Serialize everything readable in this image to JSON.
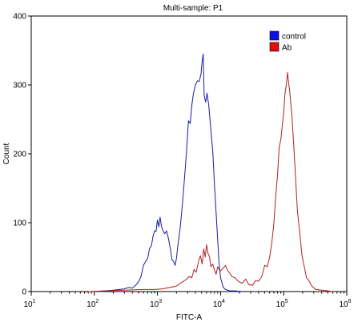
{
  "chart_data": {
    "type": "line",
    "title": "Multi-sample: P1",
    "xlabel": "FITC-A",
    "ylabel": "Count",
    "x_scale": "log",
    "xlim": [
      10,
      1000000
    ],
    "ylim": [
      0,
      400
    ],
    "x_ticks": [
      {
        "value": 10,
        "base": "10",
        "exp": "1"
      },
      {
        "value": 100,
        "base": "10",
        "exp": "2"
      },
      {
        "value": 1000,
        "base": "10",
        "exp": "3"
      },
      {
        "value": 10000,
        "base": "10",
        "exp": "4"
      },
      {
        "value": 100000,
        "base": "10",
        "exp": "5"
      },
      {
        "value": 1000000,
        "base": "10",
        "exp": "6"
      }
    ],
    "y_ticks": [
      0,
      100,
      200,
      300,
      400
    ],
    "legend": {
      "placement": "top-right"
    },
    "grid": false,
    "series": [
      {
        "name": "control",
        "color": "#1a1aa6",
        "legend_color": "#1010e0",
        "points": [
          [
            100,
            0
          ],
          [
            150,
            1
          ],
          [
            200,
            2
          ],
          [
            300,
            4
          ],
          [
            350,
            6
          ],
          [
            400,
            5
          ],
          [
            450,
            9
          ],
          [
            500,
            14
          ],
          [
            550,
            22
          ],
          [
            600,
            38
          ],
          [
            650,
            44
          ],
          [
            700,
            48
          ],
          [
            750,
            63
          ],
          [
            800,
            66
          ],
          [
            850,
            80
          ],
          [
            900,
            88
          ],
          [
            950,
            87
          ],
          [
            1000,
            104
          ],
          [
            1050,
            94
          ],
          [
            1100,
            108
          ],
          [
            1150,
            96
          ],
          [
            1200,
            90
          ],
          [
            1300,
            84
          ],
          [
            1400,
            88
          ],
          [
            1500,
            76
          ],
          [
            1600,
            62
          ],
          [
            1700,
            46
          ],
          [
            1800,
            44
          ],
          [
            1900,
            38
          ],
          [
            2000,
            48
          ],
          [
            2100,
            66
          ],
          [
            2300,
            94
          ],
          [
            2500,
            130
          ],
          [
            2700,
            168
          ],
          [
            2900,
            205
          ],
          [
            3100,
            248
          ],
          [
            3300,
            244
          ],
          [
            3500,
            270
          ],
          [
            3700,
            287
          ],
          [
            4000,
            300
          ],
          [
            4300,
            306
          ],
          [
            4600,
            305
          ],
          [
            4900,
            316
          ],
          [
            5100,
            334
          ],
          [
            5300,
            345
          ],
          [
            5500,
            285
          ],
          [
            5800,
            275
          ],
          [
            6100,
            288
          ],
          [
            6500,
            270
          ],
          [
            7000,
            235
          ],
          [
            7500,
            205
          ],
          [
            8000,
            155
          ],
          [
            8500,
            115
          ],
          [
            9000,
            75
          ],
          [
            9500,
            40
          ],
          [
            10000,
            20
          ],
          [
            11000,
            6
          ],
          [
            12000,
            3
          ],
          [
            14000,
            1
          ],
          [
            17000,
            1
          ],
          [
            22000,
            0
          ]
        ]
      },
      {
        "name": "Ab",
        "color": "#b02020",
        "legend_color": "#e01010",
        "points": [
          [
            80,
            0
          ],
          [
            150,
            1
          ],
          [
            300,
            2
          ],
          [
            600,
            3
          ],
          [
            900,
            3
          ],
          [
            1200,
            4
          ],
          [
            1600,
            6
          ],
          [
            2000,
            8
          ],
          [
            2300,
            12
          ],
          [
            2600,
            15
          ],
          [
            2900,
            18
          ],
          [
            3200,
            22
          ],
          [
            3500,
            20
          ],
          [
            3800,
            32
          ],
          [
            4100,
            28
          ],
          [
            4500,
            45
          ],
          [
            4800,
            52
          ],
          [
            5100,
            40
          ],
          [
            5400,
            62
          ],
          [
            5700,
            50
          ],
          [
            6000,
            68
          ],
          [
            6300,
            56
          ],
          [
            6700,
            50
          ],
          [
            7000,
            36
          ],
          [
            7500,
            40
          ],
          [
            8000,
            31
          ],
          [
            8500,
            25
          ],
          [
            9000,
            36
          ],
          [
            9500,
            32
          ],
          [
            10000,
            30
          ],
          [
            11000,
            34
          ],
          [
            12000,
            38
          ],
          [
            13000,
            30
          ],
          [
            14000,
            27
          ],
          [
            15000,
            22
          ],
          [
            17000,
            20
          ],
          [
            19000,
            15
          ],
          [
            22000,
            12
          ],
          [
            25000,
            18
          ],
          [
            28000,
            10
          ],
          [
            32000,
            9
          ],
          [
            36000,
            16
          ],
          [
            40000,
            15
          ],
          [
            45000,
            22
          ],
          [
            50000,
            38
          ],
          [
            55000,
            36
          ],
          [
            60000,
            50
          ],
          [
            65000,
            72
          ],
          [
            70000,
            100
          ],
          [
            75000,
            140
          ],
          [
            80000,
            170
          ],
          [
            85000,
            210
          ],
          [
            90000,
            220
          ],
          [
            95000,
            240
          ],
          [
            100000,
            260
          ],
          [
            105000,
            288
          ],
          [
            110000,
            300
          ],
          [
            115000,
            318
          ],
          [
            120000,
            303
          ],
          [
            125000,
            290
          ],
          [
            135000,
            255
          ],
          [
            145000,
            210
          ],
          [
            155000,
            162
          ],
          [
            165000,
            118
          ],
          [
            180000,
            85
          ],
          [
            195000,
            52
          ],
          [
            210000,
            38
          ],
          [
            230000,
            20
          ],
          [
            250000,
            16
          ],
          [
            280000,
            8
          ],
          [
            320000,
            3
          ],
          [
            400000,
            2
          ],
          [
            500000,
            1
          ],
          [
            600000,
            0
          ]
        ]
      }
    ]
  }
}
